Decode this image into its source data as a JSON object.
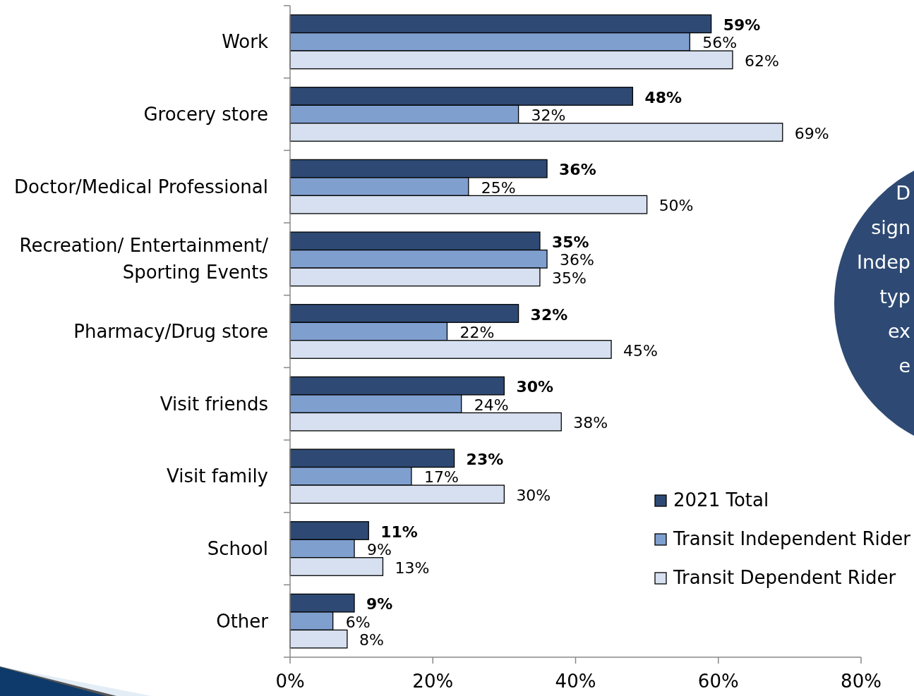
{
  "chart_data": {
    "type": "bar",
    "orientation": "horizontal",
    "categories": [
      "Work",
      "Grocery store",
      "Doctor/Medical Professional",
      "Recreation/ Entertainment/\nSporting Events",
      "Pharmacy/Drug store",
      "Visit friends",
      "Visit family",
      "School",
      "Other"
    ],
    "series": [
      {
        "name": "2021 Total",
        "color": "#2e4a74",
        "values": [
          59,
          48,
          36,
          35,
          32,
          30,
          23,
          11,
          9
        ],
        "value_labels": [
          "59%",
          "48%",
          "36%",
          "35%",
          "32%",
          "30%",
          "23%",
          "11%",
          "9%"
        ]
      },
      {
        "name": "Transit Independent Rider",
        "color": "#7f9fcf",
        "values": [
          56,
          32,
          25,
          36,
          22,
          24,
          17,
          9,
          6
        ],
        "value_labels": [
          "56%",
          "32%",
          "25%",
          "36%",
          "22%",
          "24%",
          "17%",
          "9%",
          "6%"
        ]
      },
      {
        "name": "Transit Dependent Rider",
        "color": "#d6e0f0",
        "values": [
          62,
          69,
          50,
          35,
          45,
          38,
          30,
          13,
          8
        ],
        "value_labels": [
          "62%",
          "69%",
          "50%",
          "35%",
          "45%",
          "38%",
          "30%",
          "13%",
          "8%"
        ]
      }
    ],
    "xlim": [
      0,
      80
    ],
    "xticks": [
      {
        "value": 0,
        "label": "0%"
      },
      {
        "value": 20,
        "label": "20%"
      },
      {
        "value": 40,
        "label": "40%"
      },
      {
        "value": 60,
        "label": "60%"
      },
      {
        "value": 80,
        "label": "80%"
      }
    ],
    "legend": "bottom right",
    "grid": false,
    "annotations": [
      "D",
      "sign",
      "Indep",
      "typ",
      "ex",
      "e"
    ]
  }
}
